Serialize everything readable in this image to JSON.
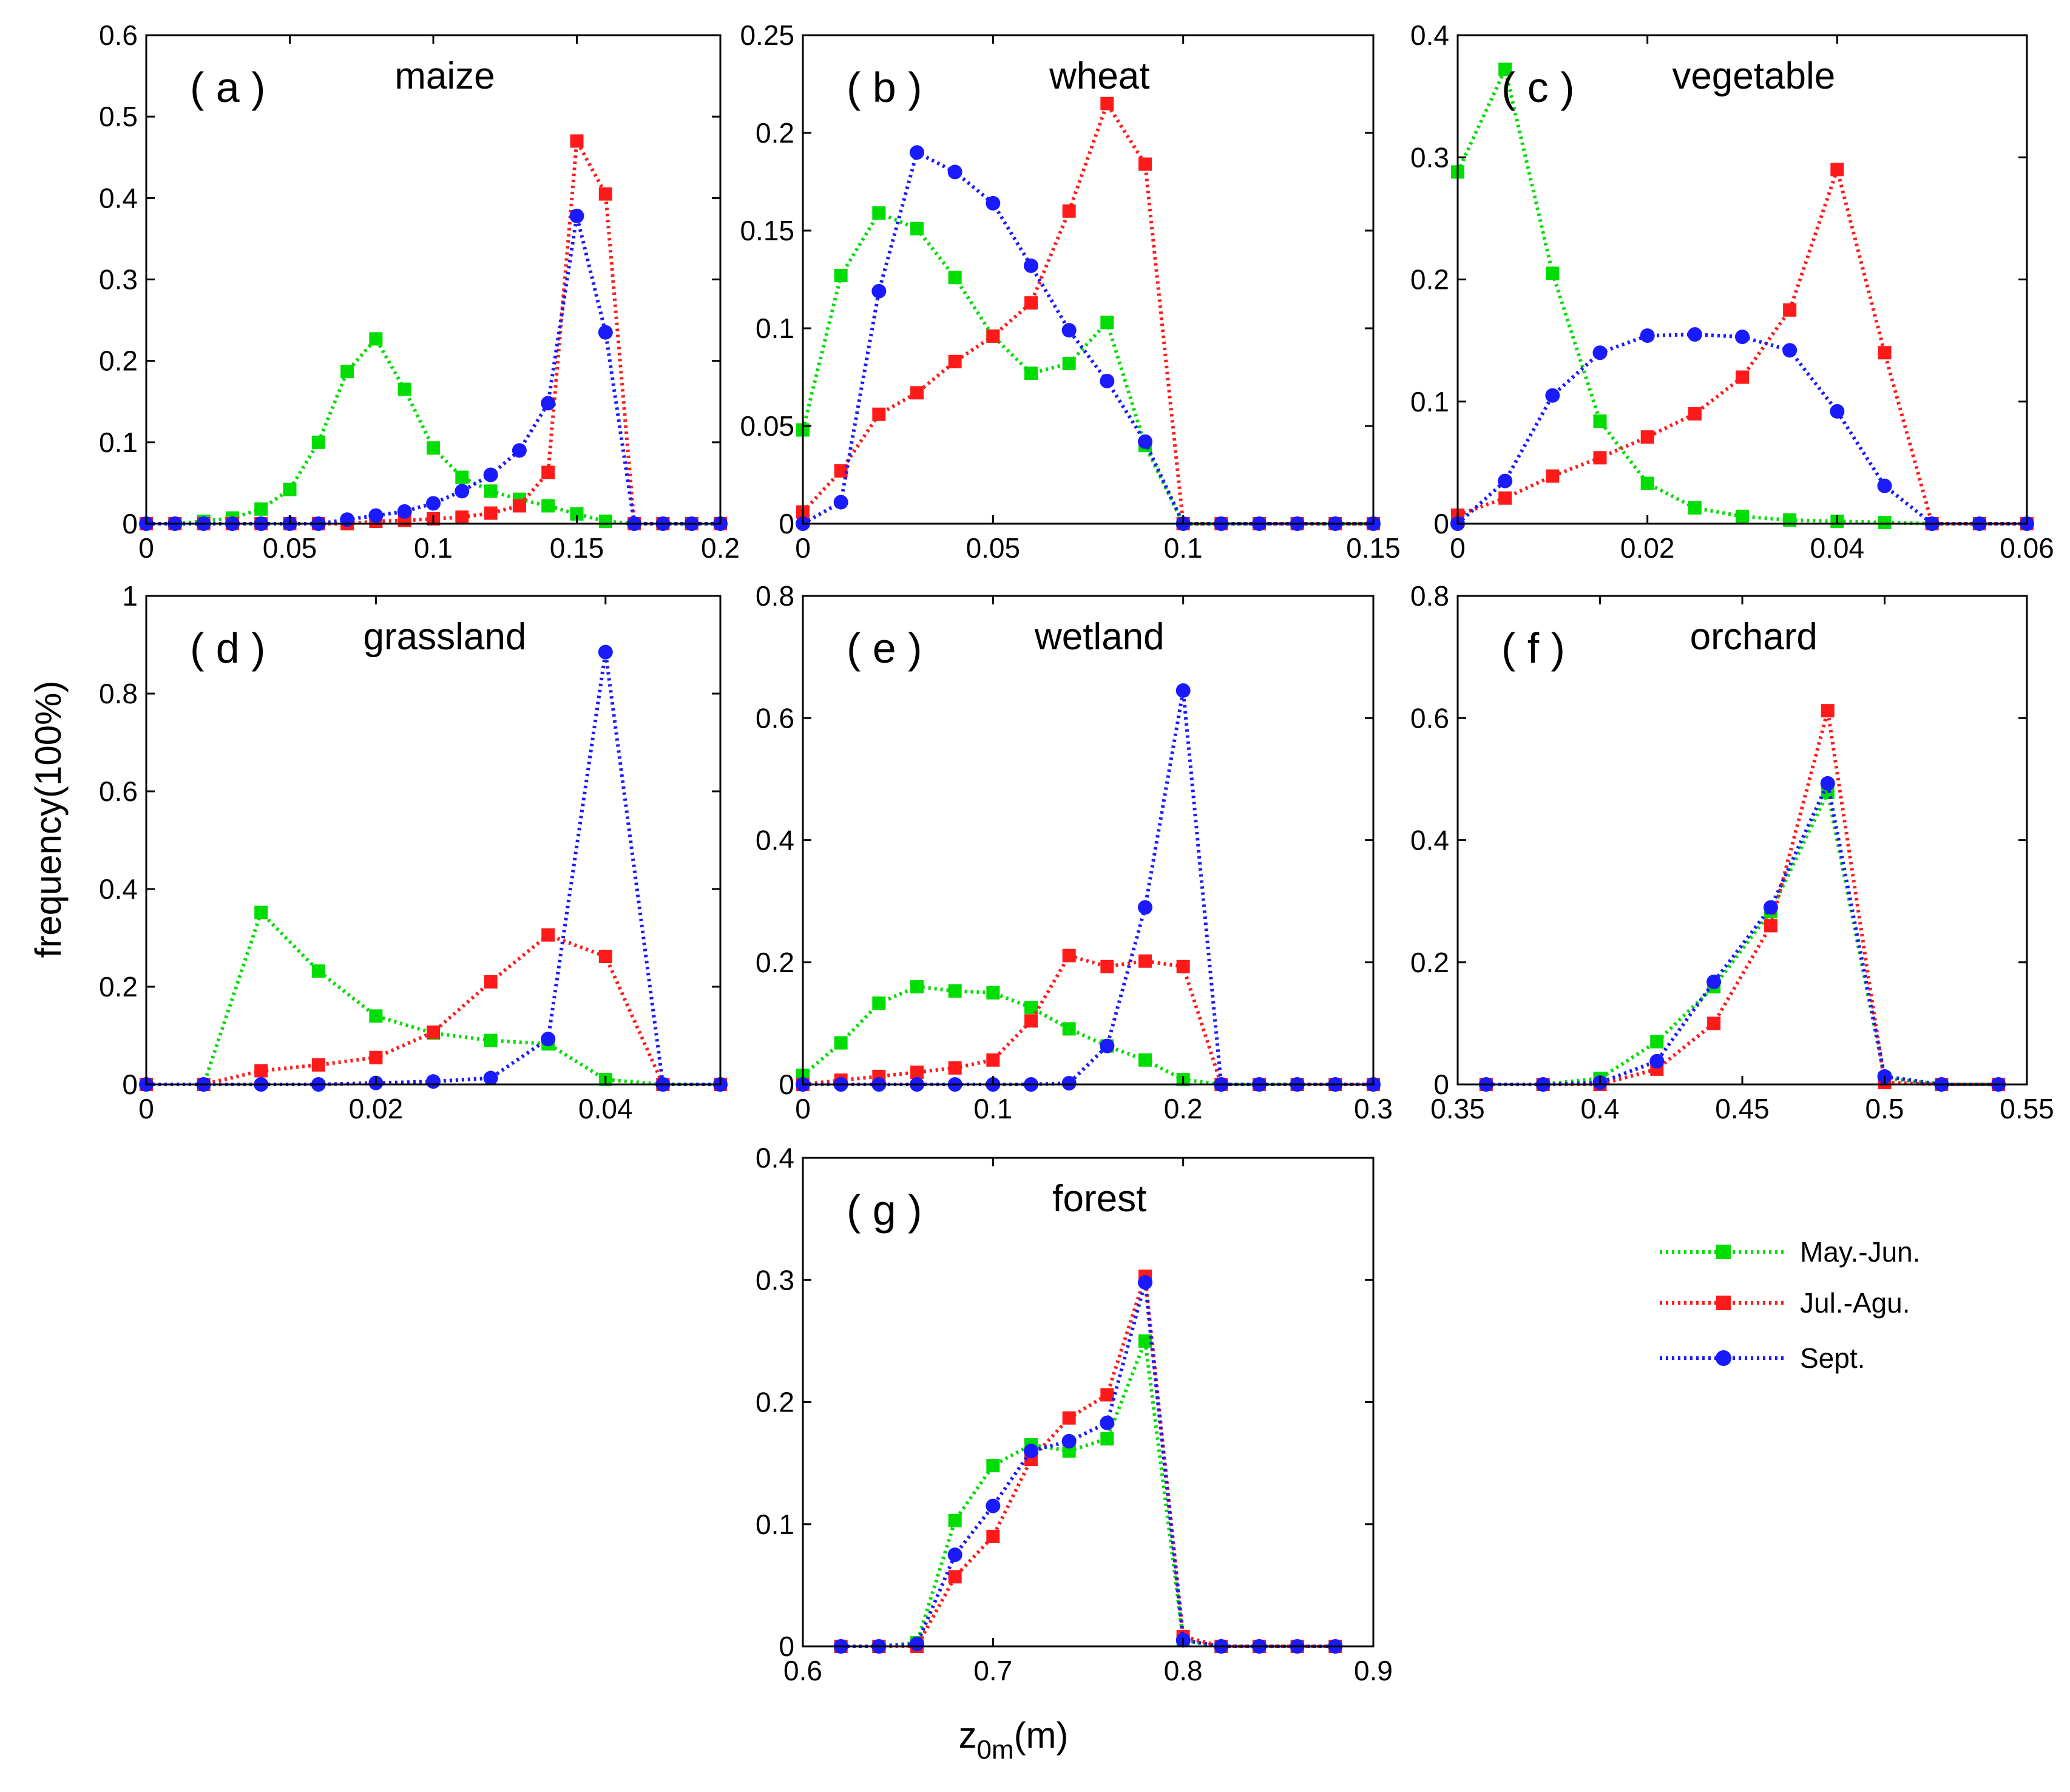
{
  "figure": {
    "ylabel": "frequency(100%)",
    "xlabel": {
      "main": "z",
      "sub": "0m",
      "unit": "(m)"
    }
  },
  "legend": [
    {
      "name": "May.-Jun.",
      "color": "#00dd00"
    },
    {
      "name": "Jul.-Agu.",
      "color": "#ff1a1a"
    },
    {
      "name": "Sept.",
      "color": "#1a1aff"
    }
  ],
  "chart_data": [
    {
      "type": "line",
      "label": "( a )",
      "title": "maize",
      "xlim": [
        0,
        0.2
      ],
      "ylim": [
        0,
        0.6
      ],
      "xticks": [
        0,
        0.05,
        0.1,
        0.15,
        0.2
      ],
      "xticklabels": [
        "0",
        "0.05",
        "0.1",
        "0.15",
        "0.2"
      ],
      "yticks": [
        0,
        0.1,
        0.2,
        0.3,
        0.4,
        0.5,
        0.6
      ],
      "yticklabels": [
        "0",
        "0.1",
        "0.2",
        "0.3",
        "0.4",
        "0.5",
        "0.6"
      ],
      "x": [
        0,
        0.01,
        0.02,
        0.03,
        0.04,
        0.05,
        0.06,
        0.07,
        0.08,
        0.09,
        0.1,
        0.11,
        0.12,
        0.13,
        0.14,
        0.15,
        0.16,
        0.17,
        0.18,
        0.19,
        0.2
      ],
      "series": [
        {
          "values": [
            0,
            0,
            0.003,
            0.007,
            0.018,
            0.042,
            0.1,
            0.187,
            0.227,
            0.165,
            0.093,
            0.057,
            0.04,
            0.03,
            0.022,
            0.012,
            0.003,
            0,
            0,
            0,
            0
          ]
        },
        {
          "values": [
            0,
            0,
            0,
            0,
            0,
            0,
            0,
            0,
            0.003,
            0.004,
            0.006,
            0.008,
            0.013,
            0.022,
            0.063,
            0.47,
            0.405,
            0,
            0,
            0,
            0
          ]
        },
        {
          "values": [
            0,
            0,
            0,
            0,
            0,
            0,
            0,
            0.005,
            0.01,
            0.015,
            0.025,
            0.04,
            0.06,
            0.09,
            0.148,
            0.378,
            0.235,
            0,
            0,
            0,
            0
          ]
        }
      ]
    },
    {
      "type": "line",
      "label": "( b )",
      "title": "wheat",
      "xlim": [
        0,
        0.15
      ],
      "ylim": [
        0,
        0.25
      ],
      "xticks": [
        0,
        0.05,
        0.1,
        0.15
      ],
      "xticklabels": [
        "0",
        "0.05",
        "0.1",
        "0.15"
      ],
      "yticks": [
        0,
        0.05,
        0.1,
        0.15,
        0.2,
        0.25
      ],
      "yticklabels": [
        "0",
        "0.05",
        "0.1",
        "0.15",
        "0.2",
        "0.25"
      ],
      "x": [
        0,
        0.01,
        0.02,
        0.03,
        0.04,
        0.05,
        0.06,
        0.07,
        0.08,
        0.09,
        0.1,
        0.11,
        0.12,
        0.13,
        0.14,
        0.15
      ],
      "series": [
        {
          "values": [
            0.048,
            0.127,
            0.159,
            0.151,
            0.126,
            0.096,
            0.077,
            0.082,
            0.103,
            0.04,
            0,
            0,
            0,
            0,
            0,
            0
          ]
        },
        {
          "values": [
            0.006,
            0.027,
            0.056,
            0.067,
            0.083,
            0.096,
            0.113,
            0.16,
            0.215,
            0.184,
            0,
            0,
            0,
            0,
            0,
            0
          ]
        },
        {
          "values": [
            0,
            0.011,
            0.119,
            0.19,
            0.18,
            0.164,
            0.132,
            0.099,
            0.073,
            0.042,
            0,
            0,
            0,
            0,
            0,
            0
          ]
        }
      ]
    },
    {
      "type": "line",
      "label": "( c )",
      "title": "vegetable",
      "xlim": [
        0,
        0.06
      ],
      "ylim": [
        0,
        0.4
      ],
      "xticks": [
        0,
        0.02,
        0.04,
        0.06
      ],
      "xticklabels": [
        "0",
        "0.02",
        "0.04",
        "0.06"
      ],
      "yticks": [
        0,
        0.1,
        0.2,
        0.3,
        0.4
      ],
      "yticklabels": [
        "0",
        "0.1",
        "0.2",
        "0.3",
        "0.4"
      ],
      "x": [
        0,
        0.005,
        0.01,
        0.015,
        0.02,
        0.025,
        0.03,
        0.035,
        0.04,
        0.045,
        0.05,
        0.055,
        0.06
      ],
      "series": [
        {
          "values": [
            0.288,
            0.372,
            0.205,
            0.084,
            0.033,
            0.013,
            0.006,
            0.003,
            0.002,
            0.001,
            0,
            0,
            0
          ]
        },
        {
          "values": [
            0.007,
            0.021,
            0.039,
            0.054,
            0.071,
            0.09,
            0.12,
            0.175,
            0.29,
            0.14,
            0,
            0,
            0
          ]
        },
        {
          "values": [
            0,
            0.035,
            0.105,
            0.14,
            0.154,
            0.155,
            0.153,
            0.142,
            0.092,
            0.031,
            0,
            0,
            0
          ]
        }
      ]
    },
    {
      "type": "line",
      "label": "( d )",
      "title": "grassland",
      "xlim": [
        0,
        0.05
      ],
      "ylim": [
        0,
        1
      ],
      "xticks": [
        0,
        0.02,
        0.04
      ],
      "xticklabels": [
        "0",
        "0.02",
        "0.04"
      ],
      "yticks": [
        0,
        0.2,
        0.4,
        0.6,
        0.8,
        1
      ],
      "yticklabels": [
        "0",
        "0.2",
        "0.4",
        "0.6",
        "0.8",
        "1"
      ],
      "x": [
        0,
        0.005,
        0.01,
        0.015,
        0.02,
        0.025,
        0.03,
        0.035,
        0.04,
        0.045,
        0.05
      ],
      "series": [
        {
          "values": [
            0,
            0,
            0.352,
            0.232,
            0.14,
            0.105,
            0.09,
            0.083,
            0.01,
            0,
            0
          ]
        },
        {
          "values": [
            0,
            0,
            0.028,
            0.04,
            0.055,
            0.107,
            0.21,
            0.306,
            0.262,
            0,
            0
          ]
        },
        {
          "values": [
            0,
            0,
            0,
            0,
            0.003,
            0.006,
            0.013,
            0.093,
            0.885,
            0,
            0
          ]
        }
      ]
    },
    {
      "type": "line",
      "label": "( e )",
      "title": "wetland",
      "xlim": [
        0,
        0.3
      ],
      "ylim": [
        0,
        0.8
      ],
      "xticks": [
        0,
        0.1,
        0.2,
        0.3
      ],
      "xticklabels": [
        "0",
        "0.1",
        "0.2",
        "0.3"
      ],
      "yticks": [
        0,
        0.2,
        0.4,
        0.6,
        0.8
      ],
      "yticklabels": [
        "0",
        "0.2",
        "0.4",
        "0.6",
        "0.8"
      ],
      "x": [
        0,
        0.02,
        0.04,
        0.06,
        0.08,
        0.1,
        0.12,
        0.14,
        0.16,
        0.18,
        0.2,
        0.22,
        0.24,
        0.26,
        0.28,
        0.3
      ],
      "series": [
        {
          "values": [
            0.015,
            0.068,
            0.133,
            0.16,
            0.153,
            0.15,
            0.126,
            0.091,
            0.063,
            0.04,
            0.008,
            0,
            0,
            0,
            0,
            0
          ]
        },
        {
          "values": [
            0,
            0.007,
            0.013,
            0.02,
            0.027,
            0.04,
            0.104,
            0.211,
            0.193,
            0.202,
            0.193,
            0,
            0,
            0,
            0,
            0
          ]
        },
        {
          "values": [
            0,
            0,
            0,
            0,
            0,
            0,
            0,
            0.002,
            0.063,
            0.29,
            0.645,
            0,
            0,
            0,
            0,
            0
          ]
        }
      ]
    },
    {
      "type": "line",
      "label": "( f )",
      "title": "orchard",
      "xlim": [
        0.35,
        0.55
      ],
      "ylim": [
        0,
        0.8
      ],
      "xticks": [
        0.35,
        0.4,
        0.45,
        0.5,
        0.55
      ],
      "xticklabels": [
        "0.35",
        "0.4",
        "0.45",
        "0.5",
        "0.55"
      ],
      "yticks": [
        0,
        0.2,
        0.4,
        0.6,
        0.8
      ],
      "yticklabels": [
        "0",
        "0.2",
        "0.4",
        "0.6",
        "0.8"
      ],
      "x": [
        0.36,
        0.38,
        0.4,
        0.42,
        0.44,
        0.46,
        0.48,
        0.5,
        0.52,
        0.54
      ],
      "series": [
        {
          "values": [
            0,
            0,
            0.01,
            0.07,
            0.16,
            0.283,
            0.478,
            0.01,
            0,
            0
          ]
        },
        {
          "values": [
            0,
            0,
            0,
            0.025,
            0.1,
            0.26,
            0.612,
            0.003,
            0,
            0
          ]
        },
        {
          "values": [
            0,
            0,
            0.003,
            0.038,
            0.168,
            0.29,
            0.493,
            0.013,
            0,
            0
          ]
        }
      ]
    },
    {
      "type": "line",
      "label": "( g )",
      "title": "forest",
      "xlim": [
        0.6,
        0.9
      ],
      "ylim": [
        0,
        0.4
      ],
      "xticks": [
        0.6,
        0.7,
        0.8,
        0.9
      ],
      "xticklabels": [
        "0.6",
        "0.7",
        "0.8",
        "0.9"
      ],
      "yticks": [
        0,
        0.1,
        0.2,
        0.3,
        0.4
      ],
      "yticklabels": [
        "0",
        "0.1",
        "0.2",
        "0.3",
        "0.4"
      ],
      "x": [
        0.62,
        0.64,
        0.66,
        0.68,
        0.7,
        0.72,
        0.74,
        0.76,
        0.78,
        0.8,
        0.82,
        0.84,
        0.86,
        0.88
      ],
      "series": [
        {
          "values": [
            0,
            0,
            0.003,
            0.103,
            0.148,
            0.165,
            0.16,
            0.17,
            0.25,
            0.005,
            0,
            0,
            0,
            0
          ]
        },
        {
          "values": [
            0,
            0,
            0,
            0.057,
            0.09,
            0.153,
            0.187,
            0.206,
            0.303,
            0.008,
            0,
            0,
            0,
            0
          ]
        },
        {
          "values": [
            0,
            0,
            0.002,
            0.075,
            0.115,
            0.16,
            0.168,
            0.183,
            0.298,
            0.005,
            0,
            0,
            0,
            0
          ]
        }
      ]
    }
  ]
}
